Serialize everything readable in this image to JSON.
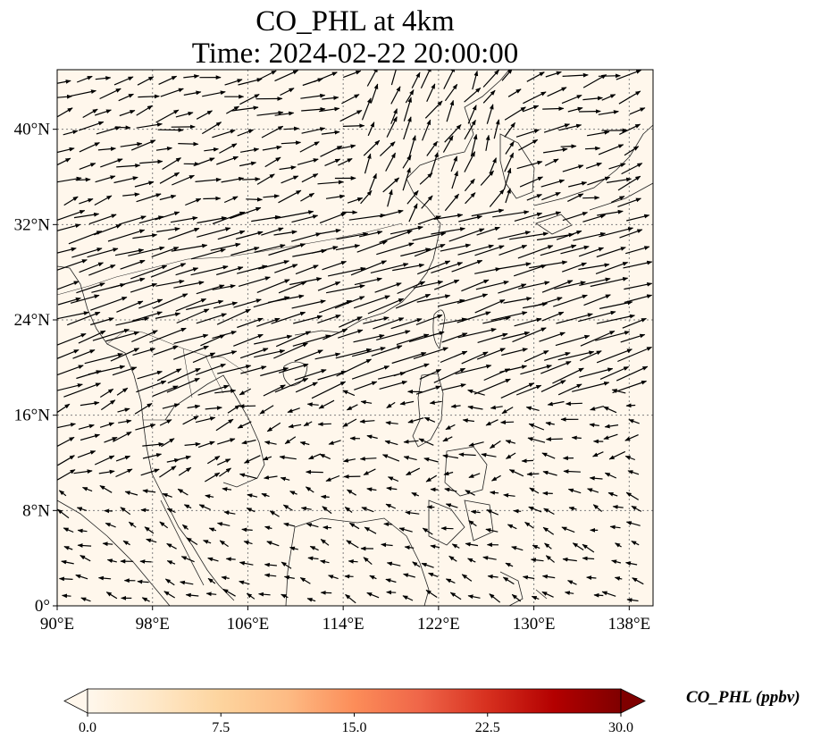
{
  "title": {
    "line1": "CO_PHL at 4km",
    "line2": "Time: 2024-02-22 20:00:00"
  },
  "map": {
    "extent": {
      "lon": [
        90,
        140
      ],
      "lat": [
        0,
        45
      ]
    },
    "background_color": "#fff7ec",
    "gridline_color": "#808080",
    "lon_ticks": [
      {
        "value": 90,
        "label": "90°E"
      },
      {
        "value": 98,
        "label": "98°E"
      },
      {
        "value": 106,
        "label": "106°E"
      },
      {
        "value": 114,
        "label": "114°E"
      },
      {
        "value": 122,
        "label": "122°E"
      },
      {
        "value": 130,
        "label": "130°E"
      },
      {
        "value": 138,
        "label": "138°E"
      }
    ],
    "lat_ticks": [
      {
        "value": 0,
        "label": "0°"
      },
      {
        "value": 8,
        "label": "8°N"
      },
      {
        "value": 16,
        "label": "16°N"
      },
      {
        "value": 24,
        "label": "24°N"
      },
      {
        "value": 32,
        "label": "32°N"
      },
      {
        "value": 40,
        "label": "40°N"
      }
    ]
  },
  "colorbar": {
    "label": "CO_PHL (ppbv)",
    "colormap": "OrRd",
    "min": 0,
    "max": 30,
    "extend": "both",
    "ticks": [
      {
        "value": 0,
        "label": "0.0"
      },
      {
        "value": 7.5,
        "label": "7.5"
      },
      {
        "value": 15,
        "label": "15.0"
      },
      {
        "value": 22.5,
        "label": "22.5"
      },
      {
        "value": 30,
        "label": "30.0"
      }
    ],
    "stops": [
      "#fff7ec",
      "#fee8c8",
      "#fdd49e",
      "#fdbb84",
      "#fc8d59",
      "#ef6548",
      "#d7301f",
      "#b30000",
      "#7f0000"
    ]
  }
}
